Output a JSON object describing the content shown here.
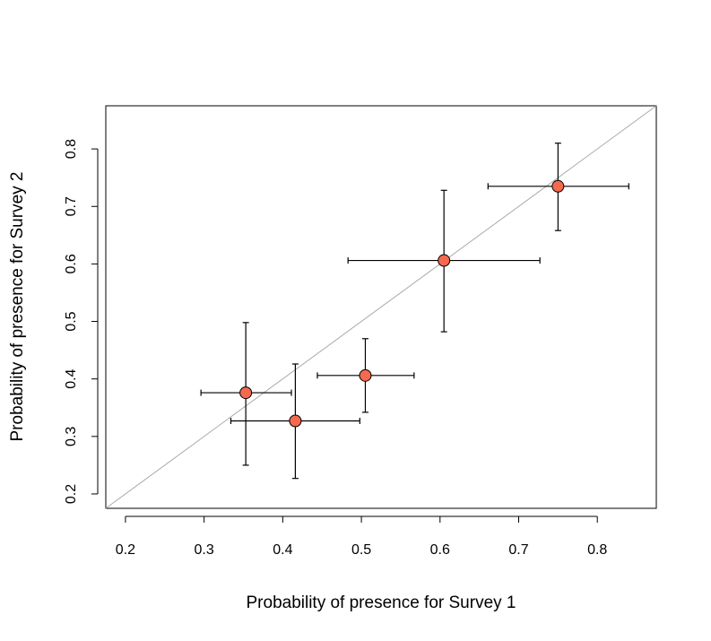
{
  "chart_data": {
    "type": "scatter",
    "title": "",
    "xlabel": "Probability of presence for Survey 1",
    "ylabel": "Probability of presence for Survey 2",
    "xlim": [
      0.175,
      0.875
    ],
    "ylim": [
      0.175,
      0.875
    ],
    "xticks": [
      0.2,
      0.3,
      0.4,
      0.5,
      0.6,
      0.7,
      0.8
    ],
    "yticks": [
      0.2,
      0.3,
      0.4,
      0.5,
      0.6,
      0.7,
      0.8
    ],
    "xtick_labels": [
      "0.2",
      "0.3",
      "0.4",
      "0.5",
      "0.6",
      "0.7",
      "0.8"
    ],
    "ytick_labels": [
      "0.2",
      "0.3",
      "0.4",
      "0.5",
      "0.6",
      "0.7",
      "0.8"
    ],
    "grid": false,
    "reference_line": {
      "slope": 1,
      "intercept": 0,
      "color": "#aaaaaa"
    },
    "point_color": "#f4694f",
    "points": [
      {
        "x": 0.353,
        "y": 0.376,
        "x_lo": 0.296,
        "x_hi": 0.411,
        "y_lo": 0.25,
        "y_hi": 0.498
      },
      {
        "x": 0.416,
        "y": 0.327,
        "x_lo": 0.334,
        "x_hi": 0.498,
        "y_lo": 0.227,
        "y_hi": 0.426
      },
      {
        "x": 0.505,
        "y": 0.406,
        "x_lo": 0.444,
        "x_hi": 0.567,
        "y_lo": 0.342,
        "y_hi": 0.47
      },
      {
        "x": 0.605,
        "y": 0.606,
        "x_lo": 0.483,
        "x_hi": 0.727,
        "y_lo": 0.482,
        "y_hi": 0.728
      },
      {
        "x": 0.75,
        "y": 0.735,
        "x_lo": 0.661,
        "x_hi": 0.84,
        "y_lo": 0.658,
        "y_hi": 0.81
      }
    ]
  }
}
